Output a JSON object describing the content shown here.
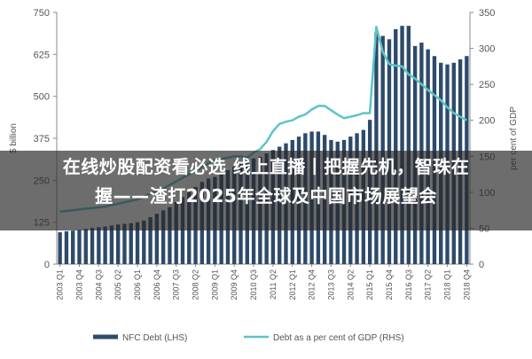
{
  "chart_data": {
    "type": "bar",
    "left_axis": {
      "label": "$ billion",
      "ticks": [
        0,
        125,
        250,
        375,
        500,
        625,
        750
      ],
      "range": [
        0,
        750
      ]
    },
    "right_axis": {
      "label": "per cent of GDP",
      "ticks": [
        0,
        50,
        100,
        150,
        200,
        250,
        300,
        350
      ],
      "range": [
        0,
        350
      ]
    },
    "categories": [
      "2003 Q1",
      "2003 Q2",
      "2003 Q3",
      "2003 Q4",
      "2004 Q1",
      "2004 Q2",
      "2004 Q3",
      "2004 Q4",
      "2005 Q1",
      "2005 Q2",
      "2005 Q3",
      "2005 Q4",
      "2006 Q1",
      "2006 Q2",
      "2006 Q3",
      "2006 Q4",
      "2007 Q1",
      "2007 Q2",
      "2007 Q3",
      "2007 Q4",
      "2008 Q1",
      "2008 Q2",
      "2008 Q3",
      "2008 Q4",
      "2009 Q1",
      "2009 Q2",
      "2009 Q3",
      "2009 Q4",
      "2010 Q1",
      "2010 Q2",
      "2010 Q3",
      "2010 Q4",
      "2011 Q1",
      "2011 Q2",
      "2011 Q3",
      "2011 Q4",
      "2012 Q1",
      "2012 Q2",
      "2012 Q3",
      "2012 Q4",
      "2013 Q1",
      "2013 Q2",
      "2013 Q3",
      "2013 Q4",
      "2014 Q1",
      "2014 Q2",
      "2014 Q3",
      "2014 Q4",
      "2015 Q1",
      "2015 Q2",
      "2015 Q3",
      "2015 Q4",
      "2016 Q1",
      "2016 Q2",
      "2016 Q3",
      "2016 Q4",
      "2017 Q1",
      "2017 Q2",
      "2017 Q3",
      "2017 Q4",
      "2018 Q1",
      "2018 Q2",
      "2018 Q3",
      "2018 Q4"
    ],
    "tick_labels": [
      "2003 Q1",
      "2003 Q4",
      "2004 Q3",
      "2005 Q2",
      "2006 Q1",
      "2006 Q4",
      "2007 Q3",
      "2008 Q2",
      "2009 Q1",
      "2009 Q4",
      "2010 Q3",
      "2011 Q2",
      "2012 Q1",
      "2012 Q4",
      "2013 Q3",
      "2014 Q2",
      "2015 Q1",
      "2015 Q4",
      "2016 Q3",
      "2017 Q2",
      "2018 Q1",
      "2018 Q4"
    ],
    "series": [
      {
        "name": "NFC Debt (LHS)",
        "axis": "left",
        "style": "bar",
        "color": "#2d4a6a",
        "values": [
          95,
          98,
          100,
          102,
          105,
          108,
          110,
          112,
          115,
          118,
          120,
          122,
          125,
          130,
          140,
          150,
          160,
          170,
          185,
          200,
          215,
          230,
          245,
          255,
          260,
          270,
          280,
          290,
          300,
          310,
          315,
          320,
          330,
          340,
          350,
          360,
          370,
          380,
          390,
          395,
          395,
          385,
          370,
          365,
          370,
          380,
          390,
          400,
          430,
          690,
          680,
          670,
          700,
          710,
          710,
          650,
          660,
          640,
          620,
          600,
          595,
          600,
          610,
          620
        ]
      },
      {
        "name": "Debt as a per cent of GDP (RHS)",
        "axis": "right",
        "style": "line",
        "color": "#5cc4c8",
        "values": [
          73,
          74,
          75,
          76,
          77,
          78,
          79,
          80,
          82,
          84,
          86,
          88,
          90,
          94,
          98,
          102,
          105,
          110,
          115,
          120,
          125,
          130,
          135,
          140,
          145,
          146,
          148,
          150,
          150,
          148,
          155,
          160,
          170,
          185,
          195,
          198,
          200,
          205,
          208,
          215,
          220,
          220,
          214,
          208,
          203,
          205,
          207,
          210,
          210,
          330,
          295,
          278,
          276,
          275,
          264,
          258,
          250,
          242,
          235,
          228,
          218,
          210,
          205,
          200
        ]
      }
    ],
    "legend_position": "bottom",
    "grid": false
  },
  "banner": {
    "line1": "在线炒股配资看必选 线上直播丨把握先机，智珠在",
    "line2": "握——渣打2025年全球及中国市场展望会"
  }
}
